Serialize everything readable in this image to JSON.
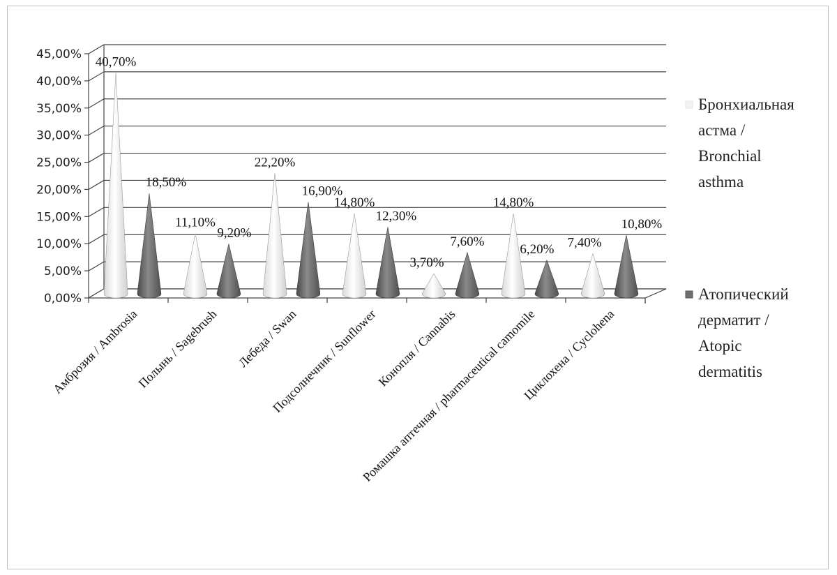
{
  "chart_data": {
    "type": "bar",
    "style": "3d-cone",
    "categories": [
      "Амброзия / Ambrosia",
      "Полынь / Sagebrush",
      "Лебеда / Swan",
      "Подсолнечник / Sunflower",
      "Конопля / Cannabis",
      "Ромашка аптечная / pharmaceutical camomile",
      "Циклохена / Cyclohena"
    ],
    "series": [
      {
        "name": "Бронхиальная астма / Bronchial asthma",
        "legend_lines": [
          "Бронхиальная",
          "астма /",
          "Bronchial",
          "asthma"
        ],
        "color": "#f2f2f2",
        "values": [
          40.7,
          11.1,
          22.2,
          14.8,
          3.7,
          14.8,
          7.4
        ],
        "labels": [
          "40,70%",
          "11,10%",
          "22,20%",
          "14,80%",
          "3,70%",
          "14,80%",
          "7,40%"
        ]
      },
      {
        "name": "Атопический дерматит / Atopic dermatitis",
        "legend_lines": [
          "Атопический",
          "дерматит /",
          "Atopic",
          "dermatitis"
        ],
        "color": "#6e6e6e",
        "values": [
          18.5,
          9.2,
          16.9,
          12.3,
          7.6,
          6.2,
          10.8
        ],
        "labels": [
          "18,50%",
          "9,20%",
          "16,90%",
          "12,30%",
          "7,60%",
          "6,20%",
          "10,80%"
        ]
      }
    ],
    "ylim": [
      0,
      45
    ],
    "yticks": [
      0,
      5,
      10,
      15,
      20,
      25,
      30,
      35,
      40,
      45
    ],
    "ytick_labels": [
      "0,00%",
      "5,00%",
      "10,00%",
      "15,00%",
      "20,00%",
      "25,00%",
      "30,00%",
      "35,00%",
      "40,00%",
      "45,00%"
    ],
    "grid": true,
    "legend": "right"
  }
}
